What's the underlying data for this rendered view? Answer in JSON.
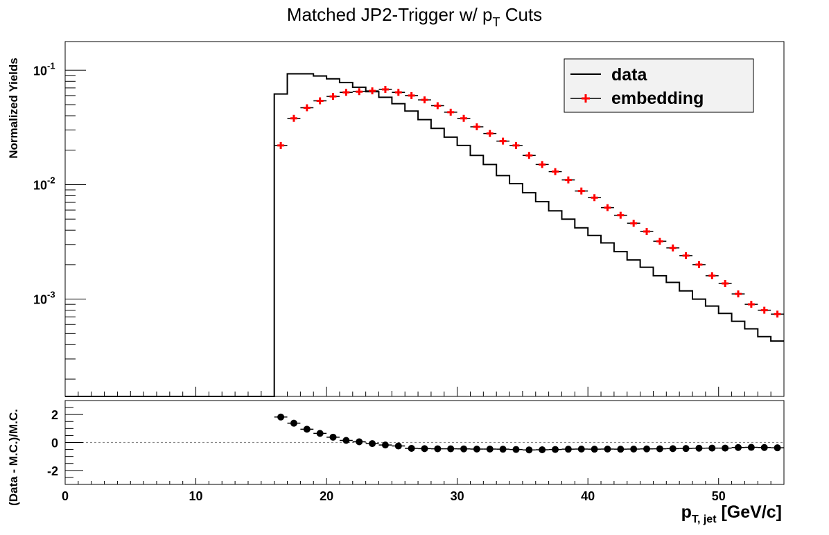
{
  "chart_data": [
    {
      "type": "line",
      "panel": "main",
      "title": "Matched JP2-Trigger w/ p",
      "title_sub": "T",
      "title_tail": " Cuts",
      "ylabel": "Normalized Yields",
      "xlim": [
        0,
        55
      ],
      "ylim_log10": [
        -3.85,
        -0.75
      ],
      "yscale": "log",
      "y_tick_labels": [
        {
          "base": "10",
          "exp": "-1",
          "value": -1
        },
        {
          "base": "10",
          "exp": "-2",
          "value": -2
        },
        {
          "base": "10",
          "exp": "-3",
          "value": -3
        }
      ],
      "legend": {
        "placement": "top-right",
        "entries": [
          {
            "label": "data",
            "style": "line"
          },
          {
            "label": "embedding",
            "style": "marker"
          }
        ]
      },
      "series": [
        {
          "name": "data",
          "style": "step-histogram",
          "color": "#000000",
          "bin_edges": [
            16,
            17,
            18,
            19,
            20,
            21,
            22,
            23,
            24,
            25,
            26,
            27,
            28,
            29,
            30,
            31,
            32,
            33,
            34,
            35,
            36,
            37,
            38,
            39,
            40,
            41,
            42,
            43,
            44,
            45,
            46,
            47,
            48,
            49,
            50,
            51,
            52,
            53,
            54,
            55
          ],
          "values": [
            0.062,
            0.093,
            0.093,
            0.089,
            0.084,
            0.078,
            0.071,
            0.065,
            0.058,
            0.051,
            0.044,
            0.037,
            0.031,
            0.026,
            0.022,
            0.018,
            0.015,
            0.012,
            0.0102,
            0.0085,
            0.0071,
            0.0059,
            0.005,
            0.0042,
            0.0036,
            0.0031,
            0.0026,
            0.0022,
            0.0019,
            0.0016,
            0.0014,
            0.00118,
            0.001,
            0.00087,
            0.00075,
            0.00064,
            0.00055,
            0.00047,
            0.00043
          ]
        },
        {
          "name": "embedding",
          "style": "markers",
          "color": "#ff0000",
          "x": [
            16.5,
            17.5,
            18.5,
            19.5,
            20.5,
            21.5,
            22.5,
            23.5,
            24.5,
            25.5,
            26.5,
            27.5,
            28.5,
            29.5,
            30.5,
            31.5,
            32.5,
            33.5,
            34.5,
            35.5,
            36.5,
            37.5,
            38.5,
            39.5,
            40.5,
            41.5,
            42.5,
            43.5,
            44.5,
            45.5,
            46.5,
            47.5,
            48.5,
            49.5,
            50.5,
            51.5,
            52.5,
            53.5,
            54.5
          ],
          "values": [
            0.022,
            0.038,
            0.047,
            0.054,
            0.059,
            0.064,
            0.065,
            0.066,
            0.068,
            0.064,
            0.06,
            0.055,
            0.049,
            0.043,
            0.038,
            0.032,
            0.028,
            0.024,
            0.022,
            0.018,
            0.015,
            0.013,
            0.011,
            0.0088,
            0.0077,
            0.0063,
            0.0054,
            0.0046,
            0.0039,
            0.0032,
            0.0028,
            0.0024,
            0.002,
            0.0016,
            0.00137,
            0.00111,
            0.0009,
            0.0008,
            0.00074
          ]
        }
      ]
    },
    {
      "type": "scatter",
      "panel": "ratio",
      "xlabel": "p",
      "xlabel_sub": "T, jet",
      "xlabel_tail": " [GeV/c]",
      "ylabel": "(Data - M.C.)/M.C.",
      "xlim": [
        0,
        55
      ],
      "ylim": [
        -3,
        3
      ],
      "x_ticks": [
        "0",
        "10",
        "20",
        "30",
        "40",
        "50"
      ],
      "x_tick_values": [
        0,
        10,
        20,
        30,
        40,
        50
      ],
      "y_ticks": [
        "2",
        "0",
        "-2"
      ],
      "y_tick_values": [
        2,
        0,
        -2
      ],
      "reference_line": 0,
      "series": [
        {
          "name": "ratio",
          "color": "#000000",
          "x": [
            16.5,
            17.5,
            18.5,
            19.5,
            20.5,
            21.5,
            22.5,
            23.5,
            24.5,
            25.5,
            26.5,
            27.5,
            28.5,
            29.5,
            30.5,
            31.5,
            32.5,
            33.5,
            34.5,
            35.5,
            36.5,
            37.5,
            38.5,
            39.5,
            40.5,
            41.5,
            42.5,
            43.5,
            44.5,
            45.5,
            46.5,
            47.5,
            48.5,
            49.5,
            50.5,
            51.5,
            52.5,
            53.5,
            54.5
          ],
          "values": [
            1.82,
            1.38,
            0.95,
            0.65,
            0.38,
            0.15,
            0.05,
            -0.08,
            -0.18,
            -0.25,
            -0.42,
            -0.44,
            -0.45,
            -0.45,
            -0.46,
            -0.47,
            -0.47,
            -0.48,
            -0.5,
            -0.53,
            -0.52,
            -0.5,
            -0.48,
            -0.47,
            -0.48,
            -0.47,
            -0.48,
            -0.47,
            -0.46,
            -0.45,
            -0.44,
            -0.43,
            -0.41,
            -0.4,
            -0.4,
            -0.36,
            -0.35,
            -0.36,
            -0.38
          ]
        }
      ]
    }
  ]
}
